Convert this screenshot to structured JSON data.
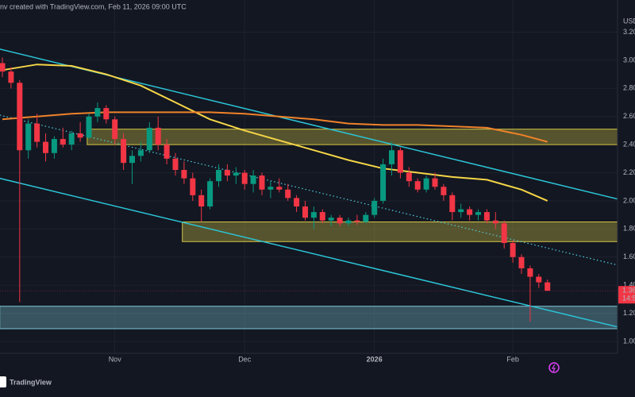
{
  "chart_data": {
    "type": "candlestick",
    "header": "nv created with TradingView.com, Feb 11, 2026 09:00 UTC",
    "currency": "USD",
    "brand": "TradingView",
    "categories": [
      null,
      null,
      null,
      null,
      null,
      null,
      null,
      null,
      null,
      null,
      null,
      null,
      null,
      "Nov",
      null,
      null,
      null,
      null,
      null,
      null,
      null,
      null,
      null,
      null,
      null,
      null,
      null,
      null,
      "Dec",
      null,
      null,
      null,
      null,
      null,
      null,
      null,
      null,
      null,
      null,
      null,
      null,
      null,
      null,
      "2026",
      null,
      null,
      null,
      null,
      null,
      null,
      null,
      null,
      null,
      null,
      null,
      null,
      null,
      null,
      null,
      "Feb",
      null,
      null,
      null,
      null
    ],
    "open": [
      2.98,
      2.92,
      2.84,
      2.36,
      2.55,
      2.42,
      2.34,
      2.44,
      2.4,
      2.48,
      2.45,
      2.6,
      2.66,
      2.58,
      2.44,
      2.27,
      2.32,
      2.36,
      2.52,
      2.4,
      2.3,
      2.22,
      2.16,
      2.04,
      1.96,
      2.14,
      2.22,
      2.18,
      2.2,
      2.12,
      2.18,
      2.08,
      2.1,
      2.08,
      2.02,
      1.96,
      1.88,
      1.92,
      1.86,
      1.88,
      1.84,
      1.86,
      1.85,
      1.9,
      2.0,
      2.26,
      2.36,
      2.2,
      2.14,
      2.08,
      2.16,
      2.1,
      2.04,
      1.92,
      1.94,
      1.9,
      1.92,
      1.86,
      1.84,
      1.7,
      1.6,
      1.52,
      1.46,
      1.42
    ],
    "high": [
      3.02,
      2.95,
      2.86,
      2.58,
      2.62,
      2.48,
      2.46,
      2.52,
      2.5,
      2.56,
      2.62,
      2.7,
      2.68,
      2.6,
      2.48,
      2.36,
      2.42,
      2.56,
      2.6,
      2.44,
      2.34,
      2.28,
      2.2,
      2.08,
      2.16,
      2.26,
      2.26,
      2.24,
      2.22,
      2.22,
      2.2,
      2.14,
      2.16,
      2.12,
      2.04,
      2.0,
      1.96,
      1.94,
      1.9,
      1.9,
      1.88,
      1.9,
      1.92,
      2.02,
      2.3,
      2.42,
      2.38,
      2.24,
      2.16,
      2.18,
      2.2,
      2.12,
      2.06,
      1.98,
      1.96,
      1.94,
      1.94,
      1.92,
      1.86,
      1.72,
      1.62,
      1.54,
      1.48,
      1.44
    ],
    "low": [
      2.88,
      2.8,
      1.28,
      2.3,
      2.38,
      2.28,
      2.3,
      2.38,
      2.36,
      2.42,
      2.44,
      2.56,
      2.55,
      2.4,
      2.22,
      2.12,
      2.28,
      2.34,
      2.36,
      2.26,
      2.18,
      2.12,
      2.0,
      1.85,
      1.94,
      2.1,
      2.14,
      2.12,
      2.08,
      2.06,
      2.04,
      2.02,
      2.06,
      2.0,
      1.92,
      1.86,
      1.8,
      1.84,
      1.82,
      1.82,
      1.82,
      1.83,
      1.84,
      1.88,
      1.98,
      2.18,
      2.16,
      2.1,
      2.06,
      2.06,
      2.08,
      2.0,
      1.86,
      1.88,
      1.86,
      1.86,
      1.84,
      1.8,
      1.66,
      1.56,
      1.48,
      1.14,
      1.38,
      1.36
    ],
    "close": [
      2.92,
      2.84,
      2.36,
      2.55,
      2.42,
      2.34,
      2.44,
      2.4,
      2.48,
      2.45,
      2.6,
      2.66,
      2.58,
      2.44,
      2.27,
      2.32,
      2.36,
      2.52,
      2.4,
      2.3,
      2.22,
      2.16,
      2.04,
      1.96,
      2.14,
      2.22,
      2.18,
      2.2,
      2.12,
      2.18,
      2.08,
      2.1,
      2.08,
      2.02,
      1.96,
      1.88,
      1.92,
      1.86,
      1.88,
      1.84,
      1.86,
      1.85,
      1.9,
      2.0,
      2.26,
      2.36,
      2.2,
      2.14,
      2.08,
      2.16,
      2.1,
      2.04,
      1.92,
      1.94,
      1.9,
      1.92,
      1.86,
      1.84,
      1.7,
      1.6,
      1.52,
      1.46,
      1.42,
      1.36
    ],
    "up_color": "#089981",
    "down_color": "#f23645",
    "ylim": [
      0.915,
      3.429
    ],
    "yticks": [
      {
        "value": 1.0,
        "label": "1.00"
      },
      {
        "value": 1.2,
        "label": "1.20"
      },
      {
        "value": 1.4,
        "label": "1.40"
      },
      {
        "value": 1.6,
        "label": "1.60"
      },
      {
        "value": 1.8,
        "label": "1.80"
      },
      {
        "value": 2.0,
        "label": "2.00"
      },
      {
        "value": 2.2,
        "label": "2.20"
      },
      {
        "value": 2.4,
        "label": "2.40"
      },
      {
        "value": 2.6,
        "label": "2.60"
      },
      {
        "value": 2.8,
        "label": "2.80"
      },
      {
        "value": 3.0,
        "label": "3.00"
      },
      {
        "value": 3.2,
        "label": "3.20"
      }
    ],
    "grid": true,
    "series": [
      {
        "color": "#f5d547",
        "x": [
          0,
          4,
          8,
          12,
          16,
          20,
          24,
          28,
          32,
          36,
          40,
          44,
          48,
          52,
          56,
          60,
          63
        ],
        "values": [
          2.93,
          2.97,
          2.96,
          2.9,
          2.82,
          2.7,
          2.58,
          2.5,
          2.43,
          2.36,
          2.29,
          2.23,
          2.2,
          2.17,
          2.15,
          2.08,
          2.0
        ]
      },
      {
        "color": "#f0822a",
        "x": [
          0,
          4,
          8,
          12,
          16,
          20,
          24,
          28,
          32,
          36,
          40,
          44,
          48,
          52,
          56,
          60,
          63
        ],
        "values": [
          2.58,
          2.6,
          2.62,
          2.63,
          2.63,
          2.63,
          2.63,
          2.62,
          2.6,
          2.58,
          2.55,
          2.54,
          2.54,
          2.53,
          2.52,
          2.47,
          2.42
        ]
      }
    ],
    "zones": [
      {
        "low": 2.4,
        "high": 2.51,
        "start": 9.8,
        "color": "#d4c545"
      },
      {
        "low": 1.71,
        "high": 1.85,
        "start": 20.8,
        "color": "#d4c545"
      },
      {
        "low": 1.09,
        "high": 1.25,
        "start": -0.3,
        "color": "#7fc6d6"
      }
    ],
    "trendlines": [
      {
        "x": [
          -0.3,
          71.3
        ],
        "y": [
          3.08,
          2.01
        ],
        "color": "#2bc4d6",
        "style": "solid"
      },
      {
        "x": [
          -0.3,
          71.3
        ],
        "y": [
          2.16,
          1.1
        ],
        "color": "#2bc4d6",
        "style": "solid"
      },
      {
        "x": [
          -0.3,
          71.3
        ],
        "y": [
          2.61,
          1.54
        ],
        "color": "#4dd0e1",
        "style": "dotted"
      }
    ],
    "last_price": 1.36,
    "countdown": "14:5"
  }
}
